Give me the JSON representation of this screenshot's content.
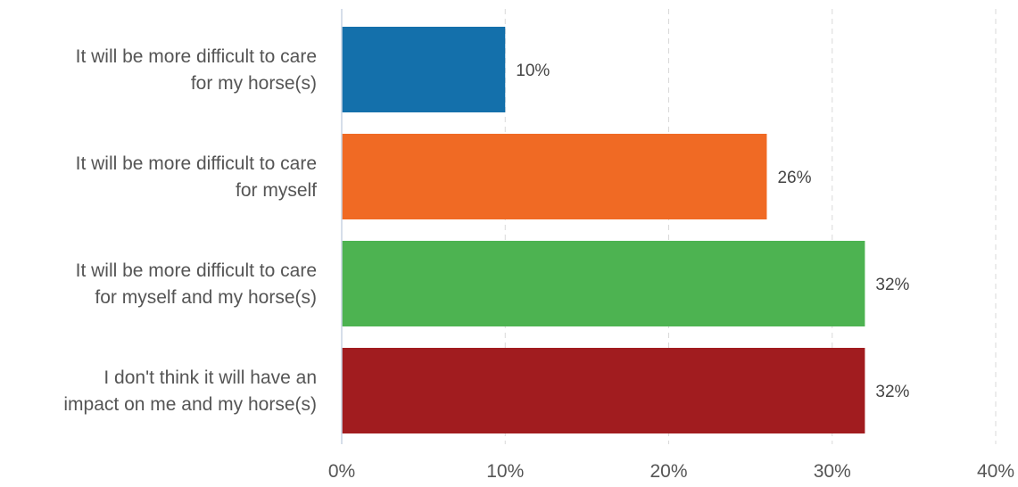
{
  "chart_data": {
    "type": "bar",
    "orientation": "horizontal",
    "categories": [
      [
        "It will be more difficult to care",
        "for my horse(s)"
      ],
      [
        "It will be more difficult to care",
        "for myself"
      ],
      [
        "It will be more difficult to care",
        "for myself and my horse(s)"
      ],
      [
        "I don't think it will have an",
        "impact on me and my horse(s)"
      ]
    ],
    "values": [
      10,
      26,
      32,
      32
    ],
    "value_labels": [
      "10%",
      "26%",
      "32%",
      "32%"
    ],
    "colors": [
      "#1470ab",
      "#f06a24",
      "#4db351",
      "#a11c1f"
    ],
    "xlim": [
      0,
      40
    ],
    "xticks": [
      0,
      10,
      20,
      30,
      40
    ],
    "xtick_labels": [
      "0%",
      "10%",
      "20%",
      "30%",
      "40%"
    ],
    "grid": true,
    "title": "",
    "xlabel": "",
    "ylabel": ""
  }
}
